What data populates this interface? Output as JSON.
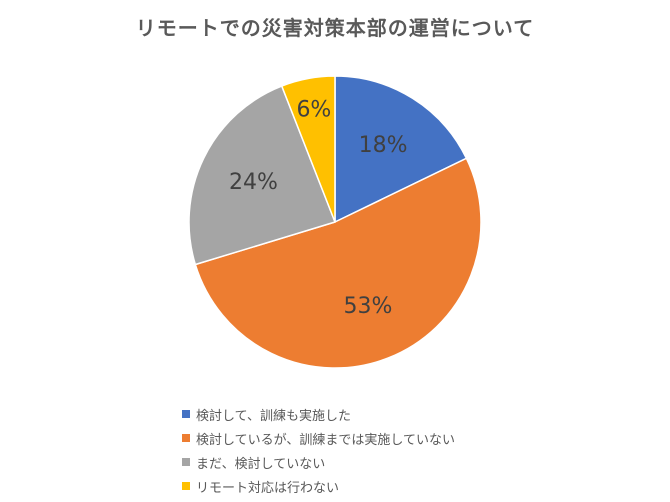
{
  "chart_data": {
    "type": "pie",
    "title": "リモートでの災害対策本部の運営について",
    "slices": [
      {
        "label": "検討して、訓練も実施した",
        "value": 18,
        "display": "18%",
        "color": "#4472C4"
      },
      {
        "label": "検討しているが、訓練までは実施していない",
        "value": 53,
        "display": "53%",
        "color": "#ED7D31"
      },
      {
        "label": "まだ、検討していない",
        "value": 24,
        "display": "24%",
        "color": "#A5A5A5"
      },
      {
        "label": "リモート対応は行わない",
        "value": 6,
        "display": "6%",
        "color": "#FFC000"
      }
    ],
    "legend_position": "bottom"
  }
}
